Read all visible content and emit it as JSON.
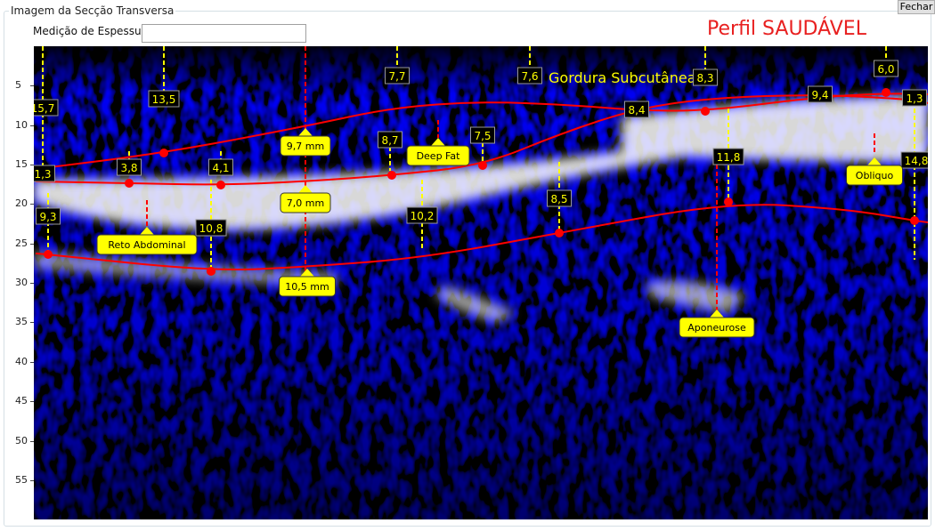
{
  "window": {
    "group_title": "Imagem da Secção Transversa",
    "close_label": "Fechar"
  },
  "measurement": {
    "label": "Medição de Espessura",
    "value": ""
  },
  "profile_title": "Perfil SAUDÁVEL",
  "image": {
    "region_label": "Gordura Subcutânea",
    "y_ticks": [
      "5",
      "10",
      "15",
      "20",
      "25",
      "30",
      "35",
      "40",
      "45",
      "50",
      "55"
    ],
    "measure_labels": [
      "15,7",
      "13,5",
      "7,7",
      "7,6",
      "8,3",
      "6,0",
      "1,3",
      "3,8",
      "4,1",
      "8,7",
      "7,5",
      "8,4",
      "9,4",
      "1,3",
      "14,8",
      "9,3",
      "10,8",
      "10,2",
      "8,5",
      "11,8"
    ],
    "callouts": [
      "9,7 mm",
      "7,0 mm",
      "10,5 mm",
      "Deep Fat",
      "Reto Abdominal",
      "Aponeurose",
      "Obliquo"
    ],
    "colors": {
      "curve": "#ff0000",
      "label_text": "#ffff00",
      "callout_bg": "#ffff00",
      "background": "#000010",
      "tissue": "#1010c0"
    }
  }
}
